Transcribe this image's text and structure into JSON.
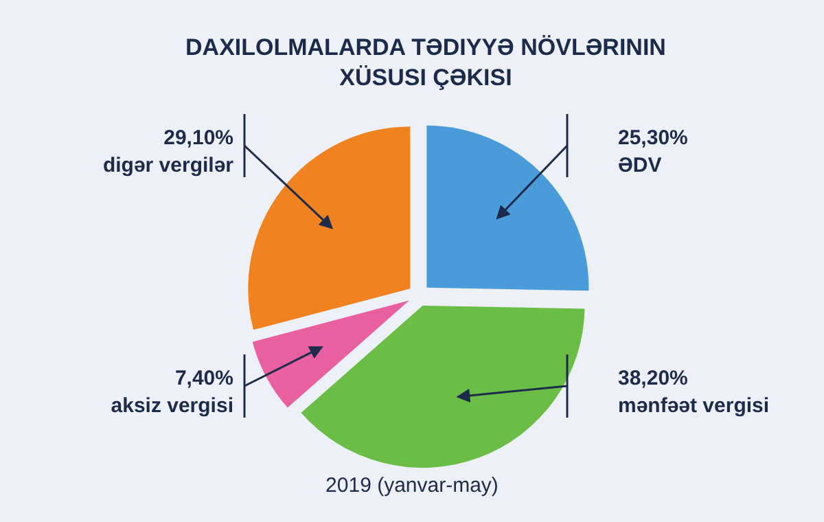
{
  "chart_data": {
    "type": "pie",
    "title": "DAXILOLMALARDA TƏDIYYƏ NÖVLƏRININ\nXÜSUSI ÇƏKISI",
    "subtitle": "2019 (yanvar-may)",
    "categories": [
      "ƏDV",
      "mənfəət vergisi",
      "aksiz vergisi",
      "digər vergilər"
    ],
    "values": [
      25.3,
      38.2,
      7.4,
      29.1
    ],
    "value_labels": [
      "25,30%",
      "38,20%",
      "7,40%",
      "29,10%"
    ],
    "colors": [
      "#4a9bd9",
      "#6abd45",
      "#e8609f",
      "#f0821f"
    ]
  }
}
